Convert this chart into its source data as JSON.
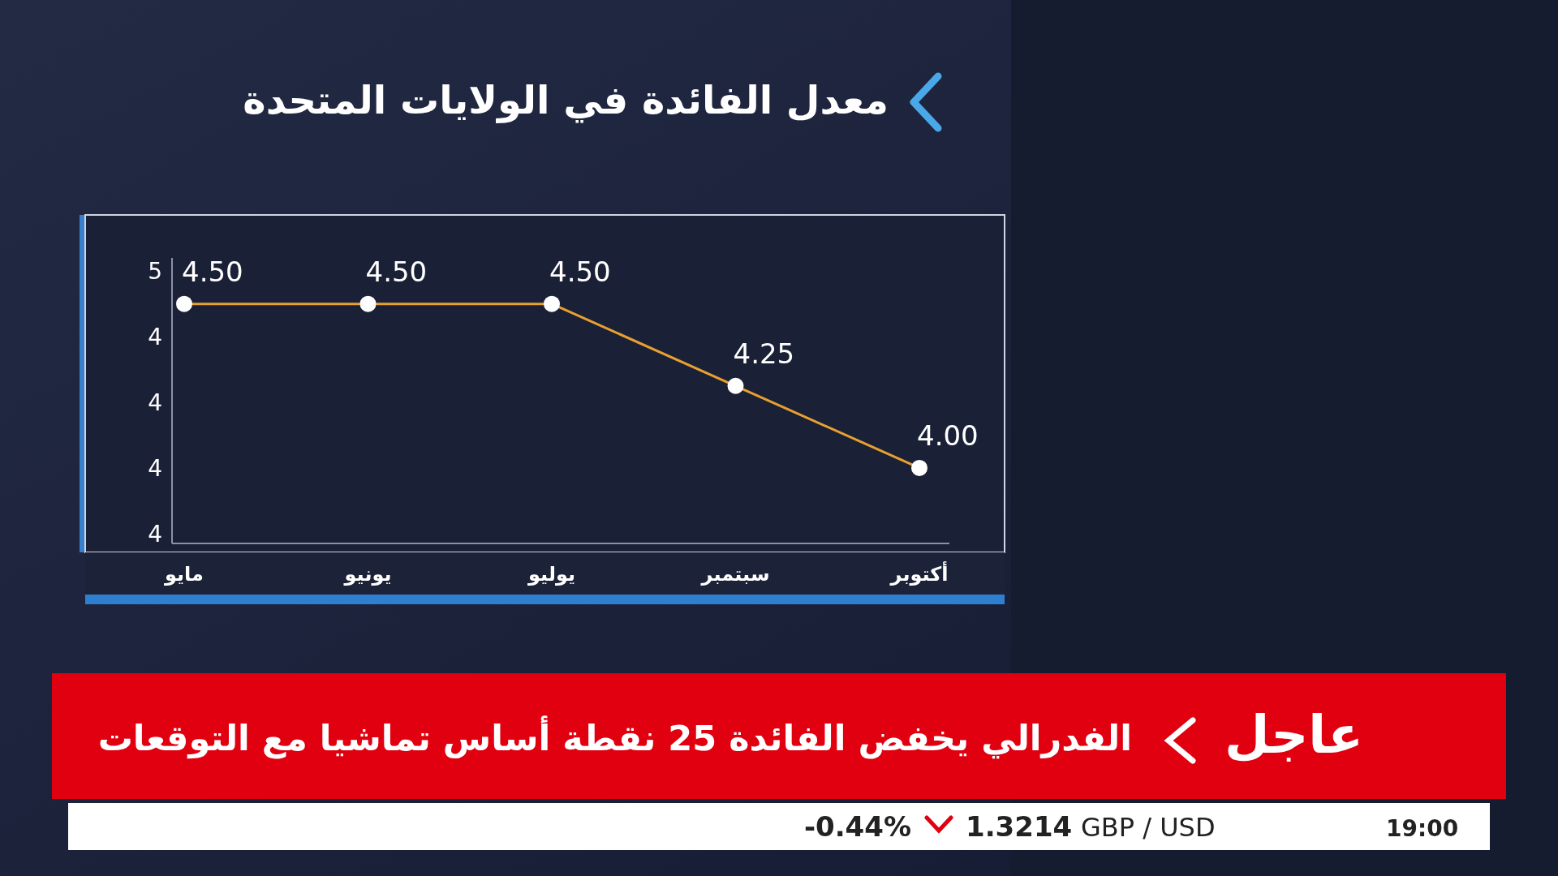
{
  "chart_data": {
    "type": "line",
    "title": "معدل الفائدة في الولايات المتحدة",
    "categories": [
      "مايو",
      "يونيو",
      "يوليو",
      "سبتمبر",
      "أكتوبر"
    ],
    "series": [
      {
        "color": "#e8a030",
        "values": [
          4.5,
          4.5,
          4.5,
          4.25,
          4.0
        ],
        "value_labels": [
          "4.50",
          "4.50",
          "4.50",
          "4.25",
          "4.00"
        ]
      }
    ],
    "ylim": [
      3.77,
      4.64
    ],
    "yticks": [
      {
        "value": 4.6,
        "label": "5"
      },
      {
        "value": 4.4,
        "label": "4"
      },
      {
        "value": 4.2,
        "label": "4"
      },
      {
        "value": 4.0,
        "label": "4"
      },
      {
        "value": 3.8,
        "label": "4"
      }
    ],
    "marker": "circle",
    "line_style": "solid",
    "grid": false,
    "annotations": [
      "عاجل",
      "الفدرالي يخفض الفائدة 25 نقطة أساس تماشيا مع التوقعات",
      "-0.44%",
      "1.3214",
      "GBP / USD",
      "19:00"
    ]
  }
}
